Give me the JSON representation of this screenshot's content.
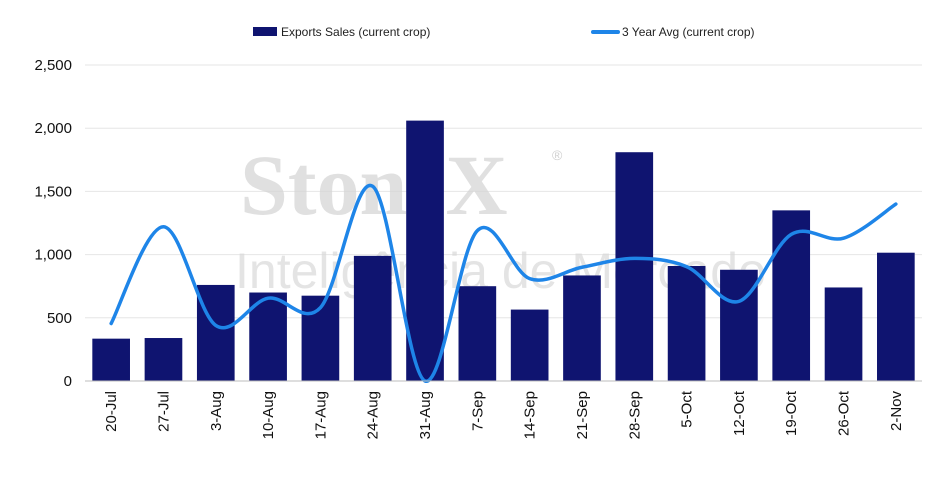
{
  "watermark": {
    "brand": "StoneX",
    "registered": "®",
    "tagline": "Inteligência de Mercado"
  },
  "colors": {
    "bars": "#0f1470",
    "line": "#1e85e8",
    "grid": "#e6e6e6"
  },
  "chart_data": {
    "type": "bar",
    "categories": [
      "20-Jul",
      "27-Jul",
      "3-Aug",
      "10-Aug",
      "17-Aug",
      "24-Aug",
      "31-Aug",
      "7-Sep",
      "14-Sep",
      "21-Sep",
      "28-Sep",
      "5-Oct",
      "12-Oct",
      "19-Oct",
      "26-Oct",
      "2-Nov"
    ],
    "series": [
      {
        "name": "Exports Sales (current crop)",
        "type": "bar",
        "values": [
          335,
          340,
          760,
          700,
          675,
          990,
          2060,
          750,
          565,
          835,
          1810,
          910,
          880,
          1350,
          740,
          1015
        ]
      },
      {
        "name": "3 Year Avg (current crop)",
        "type": "line",
        "smooth": true,
        "values": [
          455,
          1220,
          440,
          655,
          580,
          1540,
          0,
          1190,
          810,
          900,
          970,
          905,
          630,
          1160,
          1130,
          1400
        ]
      }
    ],
    "ylim": [
      0,
      2500
    ],
    "yticks": [
      0,
      500,
      1000,
      1500,
      2000,
      2500
    ],
    "ytick_labels": [
      "0",
      "500",
      "1,000",
      "1,500",
      "2,000",
      "2,500"
    ],
    "xlabel": "",
    "ylabel": "",
    "grid": true,
    "legend_position": "top-center"
  }
}
